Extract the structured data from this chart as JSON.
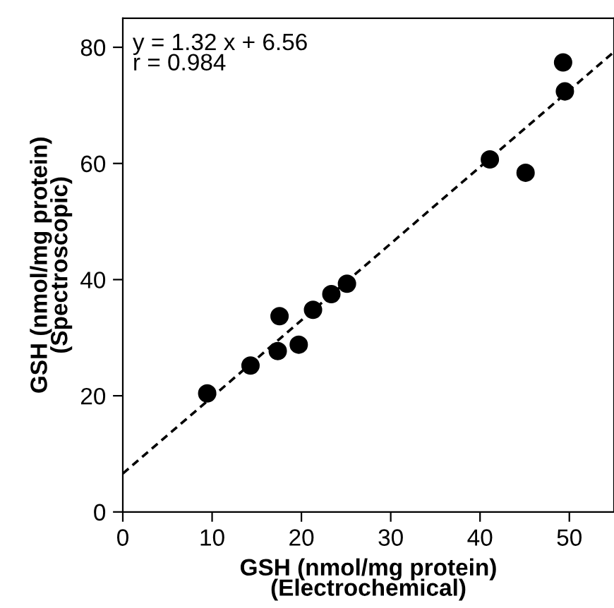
{
  "chart_data": {
    "type": "scatter",
    "xlabel": "GSH (nmol/mg protein)\n(Electrochemical)",
    "ylabel": "GSH (nmol/mg protein)\n(Spectroscopic)",
    "annotations": [
      "y = 1.32 x + 6.56\nr = 0.984"
    ],
    "series": [
      {
        "color": "#000000",
        "marker": "circle",
        "x": [
          9.45,
          14.3,
          17.35,
          17.55,
          19.7,
          21.3,
          23.35,
          25.1,
          41.1,
          45.1,
          49.3,
          49.5
        ],
        "values": [
          20.4,
          25.2,
          27.7,
          33.7,
          28.8,
          34.8,
          37.5,
          39.3,
          60.7,
          58.4,
          77.4,
          72.4
        ]
      },
      {
        "type": "line",
        "color": "#000000",
        "line_style": "dashed",
        "x": [
          0,
          55
        ],
        "values": [
          6.6,
          79.2
        ]
      }
    ],
    "xlim": [
      0,
      55
    ],
    "ylim": [
      0,
      85
    ],
    "xticks": [
      0,
      10,
      20,
      30,
      40,
      50
    ],
    "yticks": [
      0,
      20,
      40,
      60,
      80
    ],
    "grid": false,
    "legend": false
  }
}
